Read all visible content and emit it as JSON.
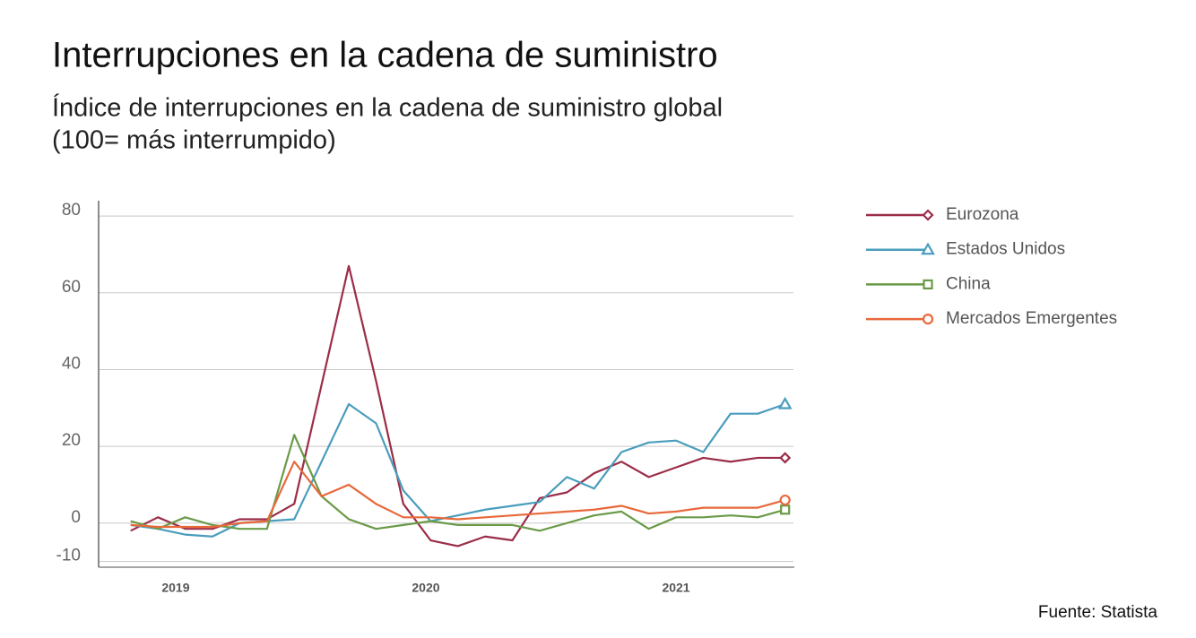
{
  "chart_data": {
    "type": "line",
    "title": "Interrupciones en la cadena de suministro",
    "subtitle": [
      "Índice de interrupciones en la cadena de suministro global",
      "(100= más interrumpido)"
    ],
    "source": "Fuente: Statista",
    "x": [
      2018.82,
      2018.929,
      2019.038,
      2019.147,
      2019.256,
      2019.365,
      2019.474,
      2019.583,
      2019.692,
      2019.801,
      2019.91,
      2020.019,
      2020.128,
      2020.237,
      2020.346,
      2020.455,
      2020.564,
      2020.673,
      2020.782,
      2020.891,
      2021.0,
      2021.109,
      2021.218,
      2021.327,
      2021.436
    ],
    "xlim": [
      2018.692,
      2021.473
    ],
    "xticks": [
      2019,
      2020,
      2021
    ],
    "ylim": [
      -11.5,
      84
    ],
    "yticks": [
      80,
      60,
      40,
      20,
      0,
      -10
    ],
    "grid": true,
    "series": [
      {
        "name": "Eurozona",
        "color": "#9b2d48",
        "marker": "diamond",
        "values": [
          -2,
          1.5,
          -1.5,
          -1.5,
          1,
          1,
          5,
          36,
          67,
          37,
          5,
          -4.5,
          -6,
          -3.5,
          -4.5,
          6.5,
          8,
          13,
          16,
          12,
          14.5,
          17,
          16,
          17,
          17
        ]
      },
      {
        "name": "Estados Unidos",
        "color": "#4a9dbd",
        "marker": "triangle",
        "values": [
          -0.5,
          -1.5,
          -3,
          -3.5,
          0,
          0.5,
          1,
          16,
          31,
          26,
          8.5,
          0.5,
          2,
          3.5,
          4.5,
          5.5,
          12,
          9,
          18.5,
          21,
          21.5,
          18.5,
          28.5,
          28.5,
          31
        ]
      },
      {
        "name": "China",
        "color": "#6a9a48",
        "marker": "square",
        "values": [
          0.5,
          -1.5,
          1.5,
          -0.5,
          -1.5,
          -1.5,
          23,
          7,
          1,
          -1.5,
          -0.5,
          0.5,
          -0.5,
          -0.5,
          -0.5,
          -2,
          0,
          2,
          3,
          -1.5,
          1.5,
          1.5,
          2,
          1.5,
          3.5
        ]
      },
      {
        "name": "Mercados Emergentes",
        "color": "#e8683a",
        "marker": "circle",
        "values": [
          -0.5,
          -1,
          -1,
          -1,
          0,
          0.5,
          16,
          7,
          10,
          5,
          1.5,
          1.5,
          1,
          1.5,
          2,
          2.5,
          3,
          3.5,
          4.5,
          2.5,
          3,
          4,
          4,
          4,
          6
        ]
      }
    ]
  }
}
